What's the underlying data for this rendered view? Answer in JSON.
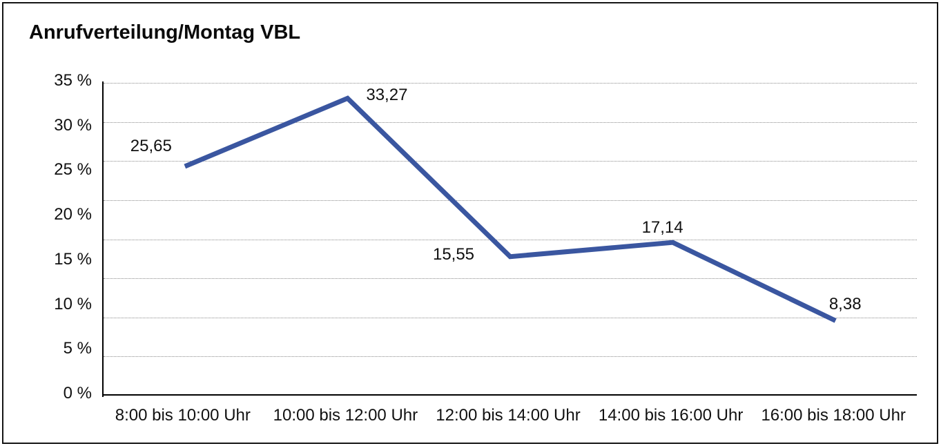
{
  "chart_data": {
    "type": "line",
    "title": "Anrufverteilung/Montag VBL",
    "categories": [
      "8:00 bis 10:00 Uhr",
      "10:00 bis 12:00 Uhr",
      "12:00 bis 14:00 Uhr",
      "14:00 bis 16:00 Uhr",
      "16:00 bis 18:00 Uhr"
    ],
    "values": [
      25.65,
      33.27,
      15.55,
      17.14,
      8.38
    ],
    "point_labels": [
      "25,65",
      "33,27",
      "15,55",
      "17,14",
      "8,38"
    ],
    "y_ticks": [
      {
        "value": 35,
        "label": "35 %"
      },
      {
        "value": 30,
        "label": "30 %"
      },
      {
        "value": 25,
        "label": "25 %"
      },
      {
        "value": 20,
        "label": "20 %"
      },
      {
        "value": 15,
        "label": "15 %"
      },
      {
        "value": 10,
        "label": "10 %"
      },
      {
        "value": 5,
        "label": "5 %"
      },
      {
        "value": 0,
        "label": "0 %"
      }
    ],
    "ylim": [
      0,
      35
    ],
    "xlabel": "",
    "ylabel": "",
    "legend": "none",
    "grid": {
      "horizontal_line_count": 9,
      "style": "dotted"
    },
    "colors": {
      "line": "#3a56a0",
      "grid": "#8a8a8a",
      "axis": "#000000",
      "text": "#111111",
      "frame_border": "#141414",
      "background": "#ffffff"
    }
  }
}
